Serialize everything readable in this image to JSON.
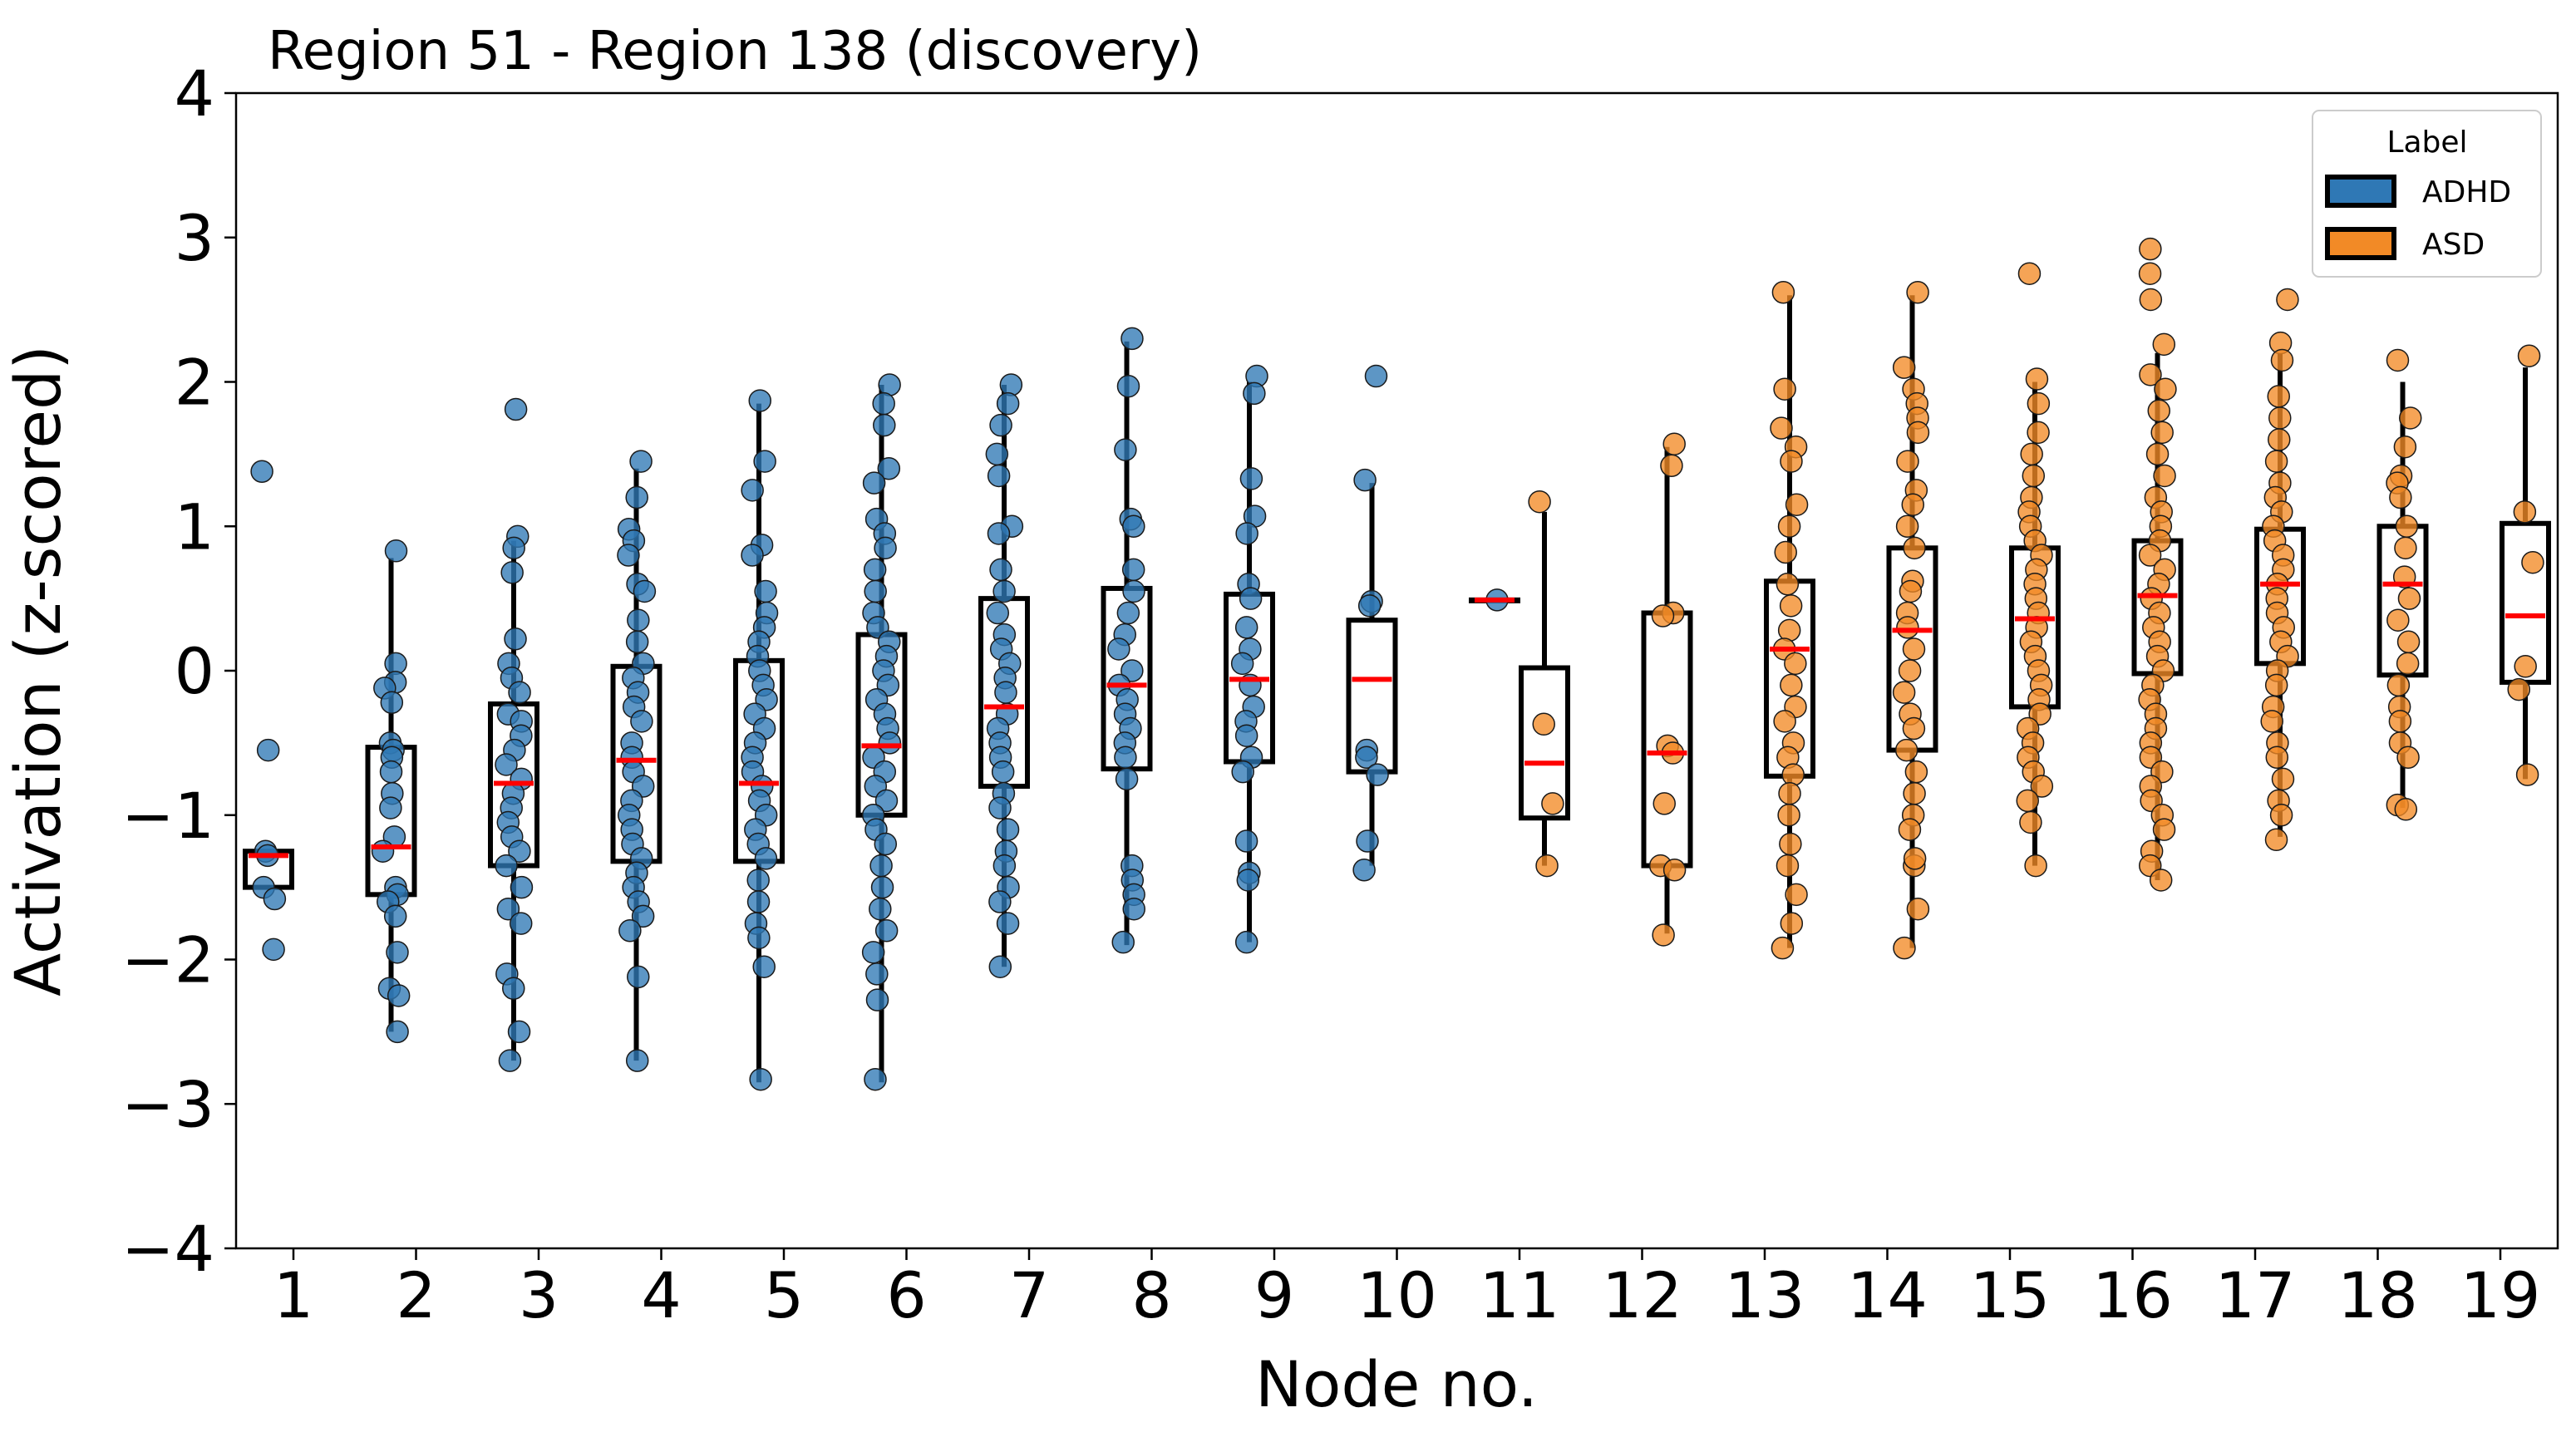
{
  "chart_data": {
    "type": "box+strip",
    "title": "Region 51 - Region 138 (discovery)",
    "xlabel": "Node no.",
    "ylabel": "Activation (z-scored)",
    "ylim": [
      -4,
      4
    ],
    "yticks": [
      4,
      3,
      2,
      1,
      0,
      -1,
      -2,
      -3,
      -4
    ],
    "ytick_labels": [
      "4",
      "3",
      "2",
      "1",
      "0",
      "−1",
      "−2",
      "−3",
      "−4"
    ],
    "categories": [
      "1",
      "2",
      "3",
      "4",
      "5",
      "6",
      "7",
      "8",
      "9",
      "10",
      "11",
      "12",
      "13",
      "14",
      "15",
      "16",
      "17",
      "18",
      "19"
    ],
    "grid": false,
    "legend": {
      "title": "Label",
      "placement": "top-right",
      "entries": [
        {
          "name": "ADHD",
          "color": "#2f78b5"
        },
        {
          "name": "ASD",
          "color": "#f28a26"
        }
      ]
    },
    "colors": {
      "ADHD": "#2f78b5",
      "ASD": "#f28a26",
      "median": "#ff0000",
      "box": "#000000"
    },
    "nodes": [
      {
        "node": 1,
        "label": "ADHD",
        "median": -1.28,
        "q1": -1.5,
        "q3": -1.25,
        "whisker_low": -1.5,
        "whisker_high": -1.25,
        "points": [
          1.38,
          -0.55,
          -1.25,
          -1.28,
          -1.5,
          -1.58,
          -1.93
        ]
      },
      {
        "node": 2,
        "label": "ADHD",
        "median": -1.22,
        "q1": -1.55,
        "q3": -0.53,
        "whisker_low": -2.5,
        "whisker_high": 0.78,
        "points": [
          0.83,
          0.05,
          -0.08,
          -0.12,
          -0.22,
          -0.5,
          -0.55,
          -0.6,
          -0.7,
          -0.85,
          -0.95,
          -1.15,
          -1.25,
          -1.5,
          -1.55,
          -1.6,
          -1.7,
          -1.95,
          -2.2,
          -2.25,
          -2.5
        ]
      },
      {
        "node": 3,
        "label": "ADHD",
        "median": -0.78,
        "q1": -1.35,
        "q3": -0.23,
        "whisker_low": -2.7,
        "whisker_high": 0.9,
        "points": [
          1.81,
          0.93,
          0.85,
          0.68,
          0.22,
          0.05,
          -0.05,
          -0.15,
          -0.3,
          -0.35,
          -0.45,
          -0.55,
          -0.65,
          -0.75,
          -0.85,
          -0.95,
          -1.05,
          -1.15,
          -1.25,
          -1.35,
          -1.5,
          -1.65,
          -1.75,
          -2.1,
          -2.2,
          -2.5,
          -2.7
        ]
      },
      {
        "node": 4,
        "label": "ADHD",
        "median": -0.62,
        "q1": -1.32,
        "q3": 0.03,
        "whisker_low": -2.7,
        "whisker_high": 1.4,
        "points": [
          1.45,
          1.2,
          0.98,
          0.9,
          0.8,
          0.6,
          0.55,
          0.35,
          0.2,
          0.05,
          -0.05,
          -0.15,
          -0.25,
          -0.35,
          -0.5,
          -0.6,
          -0.7,
          -0.8,
          -0.9,
          -1.0,
          -1.1,
          -1.2,
          -1.3,
          -1.4,
          -1.5,
          -1.6,
          -1.7,
          -1.8,
          -2.12,
          -2.7
        ]
      },
      {
        "node": 5,
        "label": "ADHD",
        "median": -0.78,
        "q1": -1.32,
        "q3": 0.07,
        "whisker_low": -2.85,
        "whisker_high": 1.85,
        "points": [
          1.87,
          1.45,
          1.25,
          0.87,
          0.8,
          0.55,
          0.4,
          0.3,
          0.2,
          0.1,
          0.0,
          -0.1,
          -0.2,
          -0.3,
          -0.4,
          -0.5,
          -0.6,
          -0.7,
          -0.8,
          -0.9,
          -1.0,
          -1.1,
          -1.2,
          -1.3,
          -1.45,
          -1.6,
          -1.75,
          -1.85,
          -2.05,
          -2.83
        ]
      },
      {
        "node": 6,
        "label": "ADHD",
        "median": -0.52,
        "q1": -1.0,
        "q3": 0.25,
        "whisker_low": -2.85,
        "whisker_high": 1.98,
        "points": [
          1.98,
          1.85,
          1.7,
          1.4,
          1.3,
          1.05,
          0.95,
          0.85,
          0.7,
          0.55,
          0.4,
          0.3,
          0.2,
          0.1,
          0.0,
          -0.1,
          -0.2,
          -0.3,
          -0.4,
          -0.5,
          -0.6,
          -0.7,
          -0.8,
          -0.9,
          -1.0,
          -1.1,
          -1.2,
          -1.35,
          -1.5,
          -1.65,
          -1.8,
          -1.95,
          -2.1,
          -2.28,
          -2.83
        ]
      },
      {
        "node": 7,
        "label": "ADHD",
        "median": -0.25,
        "q1": -0.8,
        "q3": 0.5,
        "whisker_low": -2.05,
        "whisker_high": 1.98,
        "points": [
          1.98,
          1.85,
          1.7,
          1.5,
          1.35,
          1.0,
          0.95,
          0.7,
          0.55,
          0.4,
          0.25,
          0.15,
          0.05,
          -0.05,
          -0.15,
          -0.3,
          -0.4,
          -0.5,
          -0.6,
          -0.7,
          -0.85,
          -0.95,
          -1.1,
          -1.25,
          -1.35,
          -1.5,
          -1.6,
          -1.75,
          -2.05
        ]
      },
      {
        "node": 8,
        "label": "ADHD",
        "median": -0.1,
        "q1": -0.68,
        "q3": 0.57,
        "whisker_low": -1.9,
        "whisker_high": 2.28,
        "points": [
          2.3,
          1.97,
          1.53,
          1.05,
          1.0,
          0.7,
          0.55,
          0.4,
          0.25,
          0.15,
          0.0,
          -0.1,
          -0.2,
          -0.3,
          -0.4,
          -0.5,
          -0.6,
          -0.75,
          -1.35,
          -1.45,
          -1.55,
          -1.65,
          -1.88
        ]
      },
      {
        "node": 9,
        "label": "ADHD",
        "median": -0.06,
        "q1": -0.63,
        "q3": 0.53,
        "whisker_low": -1.88,
        "whisker_high": 2.0,
        "points": [
          2.04,
          1.92,
          1.33,
          1.07,
          0.95,
          0.6,
          0.5,
          0.3,
          0.15,
          0.05,
          -0.1,
          -0.25,
          -0.35,
          -0.45,
          -0.6,
          -0.7,
          -1.18,
          -1.4,
          -1.45,
          -1.88
        ]
      },
      {
        "node": 10,
        "label": "ADHD",
        "median": -0.06,
        "q1": -0.7,
        "q3": 0.35,
        "whisker_low": -1.35,
        "whisker_high": 1.3,
        "points": [
          2.04,
          1.32,
          0.48,
          0.45,
          -0.55,
          -0.6,
          -0.72,
          -1.18,
          -1.38
        ]
      },
      {
        "node": 11,
        "label": "ADHD",
        "median": 0.49,
        "q1": 0.49,
        "q3": 0.49,
        "whisker_low": 0.49,
        "whisker_high": 0.49,
        "points": [
          0.49
        ]
      },
      {
        "node": 11,
        "label": "ASD",
        "median": -0.64,
        "q1": -1.02,
        "q3": 0.02,
        "whisker_low": -1.35,
        "whisker_high": 1.1,
        "points": [
          1.17,
          -0.37,
          -0.92,
          -1.35
        ]
      },
      {
        "node": 12,
        "label": "ASD",
        "median": -0.57,
        "q1": -1.35,
        "q3": 0.4,
        "whisker_low": -1.82,
        "whisker_high": 1.55,
        "points": [
          1.57,
          1.42,
          0.4,
          0.38,
          -0.52,
          -0.57,
          -0.92,
          -1.35,
          -1.38,
          -1.83
        ]
      },
      {
        "node": 13,
        "label": "ASD",
        "median": 0.15,
        "q1": -0.73,
        "q3": 0.62,
        "whisker_low": -1.92,
        "whisker_high": 2.6,
        "points": [
          2.62,
          1.95,
          1.68,
          1.55,
          1.45,
          1.15,
          1.0,
          0.82,
          0.6,
          0.45,
          0.28,
          0.15,
          0.05,
          -0.1,
          -0.25,
          -0.35,
          -0.5,
          -0.6,
          -0.72,
          -0.85,
          -1.0,
          -1.2,
          -1.35,
          -1.55,
          -1.75,
          -1.92
        ]
      },
      {
        "node": 14,
        "label": "ASD",
        "median": 0.28,
        "q1": -0.55,
        "q3": 0.85,
        "whisker_low": -1.92,
        "whisker_high": 2.6,
        "points": [
          2.62,
          2.1,
          1.95,
          1.85,
          1.75,
          1.65,
          1.45,
          1.25,
          1.15,
          1.0,
          0.85,
          0.62,
          0.55,
          0.4,
          0.3,
          0.15,
          0.0,
          -0.15,
          -0.3,
          -0.4,
          -0.55,
          -0.7,
          -0.85,
          -1.0,
          -1.1,
          -1.35,
          -1.3,
          -1.65,
          -1.92
        ]
      },
      {
        "node": 15,
        "label": "ASD",
        "median": 0.36,
        "q1": -0.25,
        "q3": 0.85,
        "whisker_low": -1.35,
        "whisker_high": 2.0,
        "points": [
          2.75,
          2.02,
          1.85,
          1.65,
          1.5,
          1.35,
          1.2,
          1.1,
          1.0,
          0.9,
          0.8,
          0.7,
          0.6,
          0.5,
          0.4,
          0.3,
          0.2,
          0.1,
          0.0,
          -0.1,
          -0.2,
          -0.3,
          -0.4,
          -0.5,
          -0.6,
          -0.7,
          -0.8,
          -0.9,
          -1.05,
          -1.35
        ]
      },
      {
        "node": 16,
        "label": "ASD",
        "median": 0.52,
        "q1": -0.02,
        "q3": 0.9,
        "whisker_low": -1.45,
        "whisker_high": 2.2,
        "points": [
          2.92,
          2.75,
          2.57,
          2.26,
          2.05,
          1.95,
          1.8,
          1.65,
          1.5,
          1.35,
          1.2,
          1.1,
          1.0,
          0.9,
          0.8,
          0.7,
          0.6,
          0.5,
          0.4,
          0.3,
          0.2,
          0.1,
          0.0,
          -0.1,
          -0.2,
          -0.3,
          -0.4,
          -0.5,
          -0.6,
          -0.7,
          -0.8,
          -0.9,
          -1.0,
          -1.1,
          -1.25,
          -1.35,
          -1.45
        ]
      },
      {
        "node": 17,
        "label": "ASD",
        "median": 0.6,
        "q1": 0.05,
        "q3": 0.98,
        "whisker_low": -1.15,
        "whisker_high": 2.2,
        "points": [
          2.57,
          2.27,
          2.15,
          1.9,
          1.75,
          1.6,
          1.45,
          1.3,
          1.2,
          1.1,
          1.0,
          0.9,
          0.8,
          0.7,
          0.6,
          0.5,
          0.4,
          0.3,
          0.2,
          0.1,
          0.0,
          -0.1,
          -0.25,
          -0.35,
          -0.5,
          -0.6,
          -0.75,
          -0.9,
          -1.0,
          -1.17
        ]
      },
      {
        "node": 18,
        "label": "ASD",
        "median": 0.6,
        "q1": -0.03,
        "q3": 1.0,
        "whisker_low": -0.95,
        "whisker_high": 2.0,
        "points": [
          2.15,
          1.75,
          1.55,
          1.35,
          1.3,
          1.2,
          1.0,
          0.85,
          0.65,
          0.5,
          0.35,
          0.2,
          0.05,
          -0.1,
          -0.25,
          -0.35,
          -0.5,
          -0.6,
          -0.93,
          -0.96
        ]
      },
      {
        "node": 19,
        "label": "ASD",
        "median": 0.38,
        "q1": -0.08,
        "q3": 1.02,
        "whisker_low": -0.75,
        "whisker_high": 2.1,
        "points": [
          2.18,
          1.1,
          0.75,
          0.03,
          -0.13,
          -0.72
        ]
      }
    ]
  }
}
